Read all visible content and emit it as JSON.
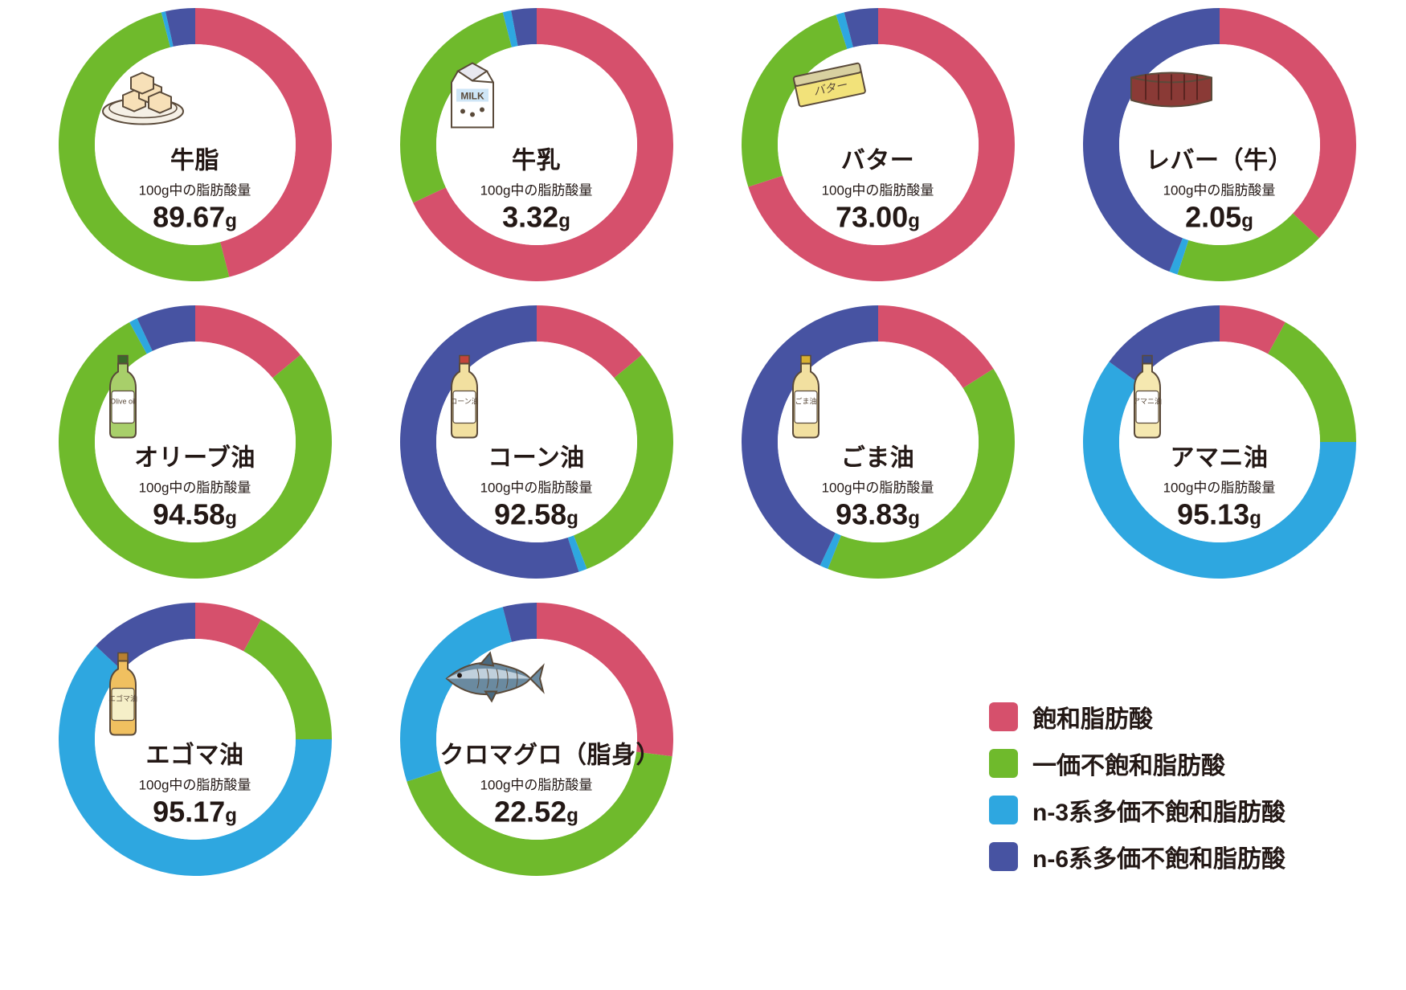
{
  "colors": {
    "saturated": "#d6506c",
    "mono": "#6fba2c",
    "n3": "#2ea7e0",
    "n6": "#4753a2",
    "text": "#231815",
    "white": "#ffffff"
  },
  "donut": {
    "outer_r": 170,
    "inner_r": 125,
    "start_angle_deg": 0
  },
  "subtitle_text": "100g中の脂肪酸量",
  "unit": "g",
  "legend": [
    {
      "key": "saturated",
      "label": "飽和脂肪酸"
    },
    {
      "key": "mono",
      "label": "一価不飽和脂肪酸"
    },
    {
      "key": "n3",
      "label": "n-3系多価不飽和脂肪酸"
    },
    {
      "key": "n6",
      "label": "n-6系多価不飽和脂肪酸"
    }
  ],
  "foods": [
    {
      "id": "beef-tallow",
      "title": "牛脂",
      "amount": "89.67",
      "icon": "tallow",
      "slices": {
        "saturated": 46,
        "mono": 50,
        "n3": 0.5,
        "n6": 3.5
      }
    },
    {
      "id": "milk",
      "title": "牛乳",
      "amount": "3.32",
      "icon": "milk",
      "slices": {
        "saturated": 68,
        "mono": 28,
        "n3": 1,
        "n6": 3
      }
    },
    {
      "id": "butter",
      "title": "バター",
      "amount": "73.00",
      "icon": "butter",
      "slices": {
        "saturated": 70,
        "mono": 25,
        "n3": 1,
        "n6": 4
      }
    },
    {
      "id": "liver",
      "title": "レバー（牛）",
      "amount": "2.05",
      "icon": "liver",
      "slices": {
        "saturated": 37,
        "mono": 18,
        "n3": 1,
        "n6": 44
      }
    },
    {
      "id": "olive-oil",
      "title": "オリーブ油",
      "amount": "94.58",
      "icon": "olive",
      "slices": {
        "saturated": 14,
        "mono": 78,
        "n3": 1,
        "n6": 7
      }
    },
    {
      "id": "corn-oil",
      "title": "コーン油",
      "amount": "92.58",
      "icon": "corn",
      "slices": {
        "saturated": 14,
        "mono": 30,
        "n3": 1,
        "n6": 55
      }
    },
    {
      "id": "sesame-oil",
      "title": "ごま油",
      "amount": "93.83",
      "icon": "sesame",
      "slices": {
        "saturated": 16,
        "mono": 40,
        "n3": 1,
        "n6": 43
      }
    },
    {
      "id": "linseed-oil",
      "title": "アマニ油",
      "amount": "95.13",
      "icon": "amani",
      "slices": {
        "saturated": 8,
        "mono": 17,
        "n3": 60,
        "n6": 15
      }
    },
    {
      "id": "egoma-oil",
      "title": "エゴマ油",
      "amount": "95.17",
      "icon": "egoma",
      "slices": {
        "saturated": 8,
        "mono": 17,
        "n3": 62,
        "n6": 13
      }
    },
    {
      "id": "tuna",
      "title": "クロマグロ（脂身）",
      "amount": "22.52",
      "icon": "tuna",
      "slices": {
        "saturated": 27,
        "mono": 43,
        "n3": 26,
        "n6": 4
      }
    }
  ],
  "icon_labels": {
    "milk": "MILK",
    "butter": "バター",
    "olive": "Olive\noil",
    "corn": "コーン油",
    "sesame": "ごま油",
    "amani": "アマニ油",
    "egoma": "エゴマ油"
  }
}
